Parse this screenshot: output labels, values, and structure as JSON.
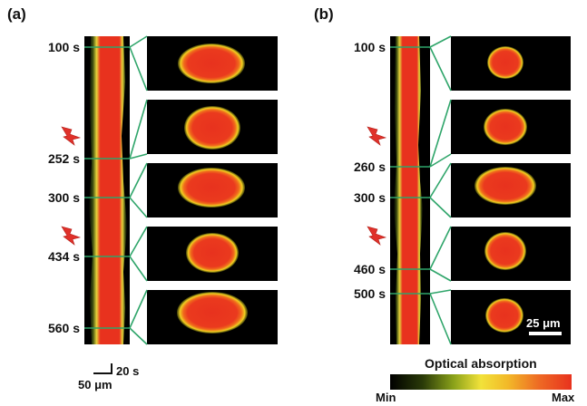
{
  "panels": [
    {
      "label": "(a)",
      "times": [
        "100 s",
        "252 s",
        "300 s",
        "434 s",
        "560 s"
      ],
      "laser_markers": 2
    },
    {
      "label": "(b)",
      "times": [
        "100 s",
        "260 s",
        "300 s",
        "460 s",
        "500 s"
      ],
      "laser_markers": 2
    }
  ],
  "scale_bar_time": "20 s",
  "scale_bar_space": "50 μm",
  "image_scale_bar": "25 μm",
  "colorbar": {
    "title": "Optical absorption",
    "min_label": "Min",
    "max_label": "Max"
  },
  "colors": {
    "connector": "#2fa56a",
    "laser": "#e0312a",
    "hot": "#e8321e",
    "warm": "#f0d020"
  }
}
